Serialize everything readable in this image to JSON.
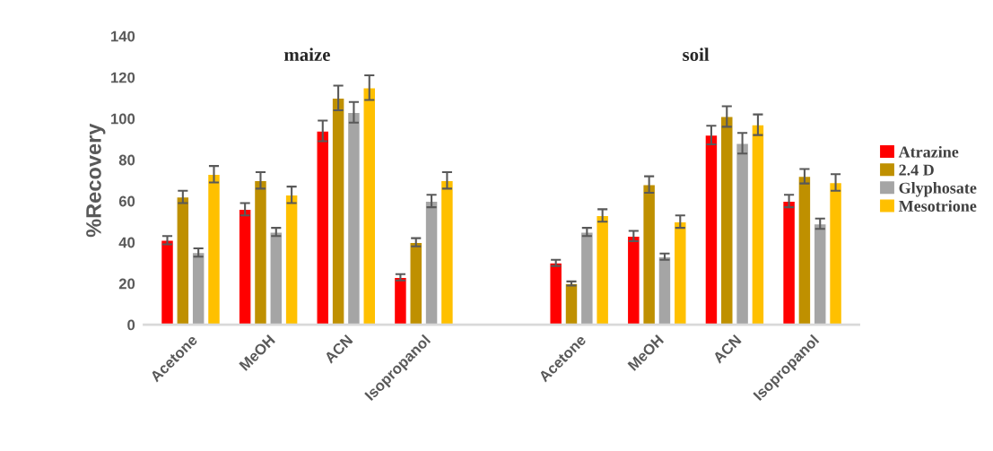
{
  "chart_data": {
    "type": "bar",
    "ylabel": "%Recovery",
    "categories": [
      "Acetone",
      "MeOH",
      "ACN",
      "Isopropanol",
      null,
      "Acetone",
      "MeOH",
      "ACN",
      "Isopropanol"
    ],
    "series": [
      {
        "name": "Atrazine",
        "color": "#ff0000",
        "values": [
          41,
          56,
          94,
          23,
          null,
          30,
          43,
          92,
          60
        ],
        "errors": [
          2,
          3,
          5,
          1.5,
          null,
          1.5,
          2.5,
          4.5,
          3
        ]
      },
      {
        "name": "2.4 D",
        "color": "#bf9000",
        "values": [
          62,
          70,
          110,
          40,
          null,
          20,
          68,
          101,
          72
        ],
        "errors": [
          3,
          4,
          6,
          2,
          null,
          1,
          4,
          5,
          3.5
        ]
      },
      {
        "name": "Glyphosate",
        "color": "#a5a5a5",
        "values": [
          35,
          45,
          103,
          60,
          null,
          45,
          33,
          88,
          49
        ],
        "errors": [
          2,
          2,
          5,
          3,
          null,
          2,
          1.5,
          5,
          2.5
        ]
      },
      {
        "name": "Mesotrione",
        "color": "#ffc000",
        "values": [
          73,
          63,
          115,
          70,
          null,
          53,
          50,
          97,
          69
        ],
        "errors": [
          4,
          4,
          6,
          4,
          null,
          3,
          3,
          5,
          4
        ]
      }
    ],
    "annotations": [
      "maize",
      "soil"
    ],
    "ylim": [
      0,
      140
    ],
    "yticks": [
      0,
      20,
      40,
      60,
      80,
      100,
      120,
      140
    ],
    "grid": false,
    "legend": "right"
  }
}
